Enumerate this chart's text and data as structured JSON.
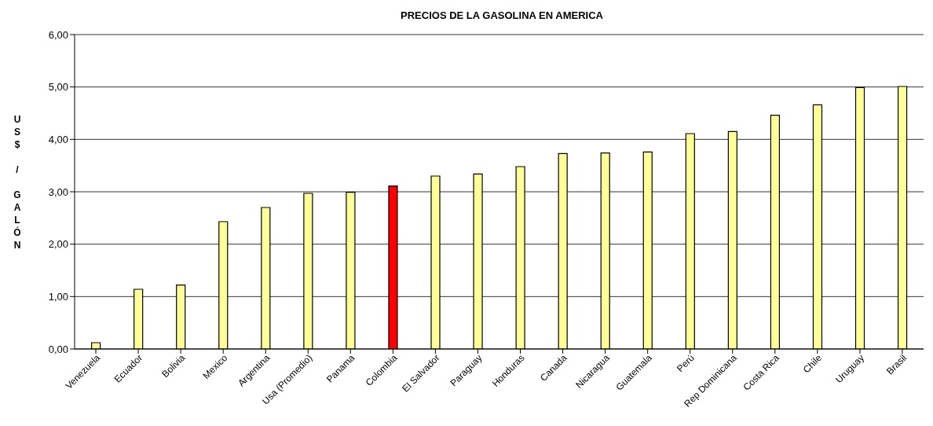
{
  "chart_data": {
    "type": "bar",
    "title": "PRECIOS DE LA GASOLINA EN AMERICA",
    "ylabel": "US$ / GALÓN",
    "categories": [
      "Venezuela",
      "Ecuador",
      "Bolivia",
      "Mexico",
      "Argentina",
      "Usa (Promedio)",
      "Panama",
      "Colombia",
      "El Salvador",
      "Paraguay",
      "Honduras",
      "Canada",
      "Nicaragua",
      "Guatemala",
      "Perú",
      "Rep Dominicana",
      "Costa Rica",
      "Chile",
      "Uruguay",
      "Brasil"
    ],
    "values": [
      0.12,
      1.14,
      1.22,
      2.43,
      2.7,
      2.97,
      2.99,
      3.11,
      3.3,
      3.34,
      3.48,
      3.73,
      3.74,
      3.76,
      4.11,
      4.15,
      4.46,
      4.66,
      4.99,
      5.01
    ],
    "colors": [
      "#ffff99",
      "#ffff99",
      "#ffff99",
      "#ffff99",
      "#ffff99",
      "#ffff99",
      "#ffff99",
      "#ff0000",
      "#ffff99",
      "#ffff99",
      "#ffff99",
      "#ffff99",
      "#ffff99",
      "#ffff99",
      "#ffff99",
      "#ffff99",
      "#ffff99",
      "#ffff99",
      "#ffff99",
      "#ffff99"
    ],
    "ylim": [
      0,
      6
    ],
    "yticks": [
      {
        "value": 0,
        "label": "0,00"
      },
      {
        "value": 1,
        "label": "1,00"
      },
      {
        "value": 2,
        "label": "2,00"
      },
      {
        "value": 3,
        "label": "3,00"
      },
      {
        "value": 4,
        "label": "4,00"
      },
      {
        "value": 5,
        "label": "5,00"
      },
      {
        "value": 6,
        "label": "6,00"
      }
    ],
    "grid": "y",
    "legend": false
  }
}
